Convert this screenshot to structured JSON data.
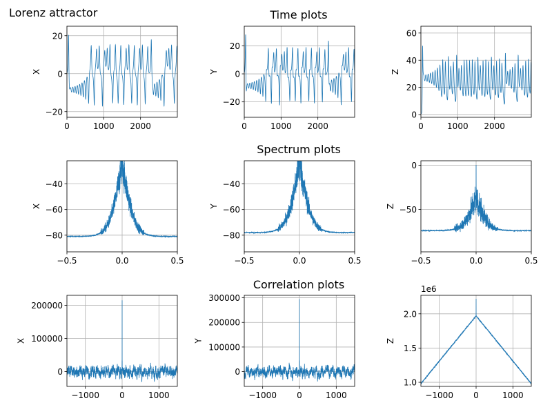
{
  "figure_title": "Lorenz attractor",
  "row_titles": [
    "Time plots",
    "Spectrum plots",
    "Correlation plots"
  ],
  "colors": {
    "line": "#1f77b4",
    "grid": "#b0b0b0",
    "axis": "#000000"
  },
  "chart_data": [
    {
      "type": "line",
      "row": 0,
      "col": 0,
      "ylabel": "X",
      "xlim": [
        0,
        3000
      ],
      "ylim": [
        -23,
        25
      ],
      "xticks": [
        0,
        1000,
        2000
      ],
      "xtick_labels": [
        "0",
        "1000",
        "2000"
      ],
      "yticks": [
        -20,
        0,
        20
      ],
      "ytick_labels": [
        "−20",
        "0",
        "20"
      ],
      "signal": {
        "kind": "time",
        "var": "x",
        "n": 3000
      }
    },
    {
      "type": "line",
      "row": 0,
      "col": 1,
      "ylabel": "Y",
      "xlim": [
        0,
        3000
      ],
      "ylim": [
        -31,
        34
      ],
      "xticks": [
        0,
        1000,
        2000
      ],
      "xtick_labels": [
        "0",
        "1000",
        "2000"
      ],
      "yticks": [
        -20,
        0,
        20
      ],
      "ytick_labels": [
        "−20",
        "0",
        "20"
      ],
      "signal": {
        "kind": "time",
        "var": "y",
        "n": 3000
      }
    },
    {
      "type": "line",
      "row": 0,
      "col": 2,
      "ylabel": "Z",
      "xlim": [
        0,
        3000
      ],
      "ylim": [
        -2,
        65
      ],
      "xticks": [
        0,
        1000,
        2000
      ],
      "xtick_labels": [
        "0",
        "1000",
        "2000"
      ],
      "yticks": [
        0,
        20,
        40,
        60
      ],
      "ytick_labels": [
        "0",
        "20",
        "40",
        "60"
      ],
      "signal": {
        "kind": "time",
        "var": "z",
        "n": 3000
      }
    },
    {
      "type": "line",
      "row": 1,
      "col": 0,
      "ylabel": "X",
      "xlim": [
        -0.5,
        0.5
      ],
      "ylim": [
        -93,
        -22
      ],
      "xticks": [
        -0.5,
        0,
        0.5
      ],
      "xtick_labels": [
        "−0.5",
        "0.0",
        "0.5"
      ],
      "yticks": [
        -80,
        -60,
        -40
      ],
      "ytick_labels": [
        "−80",
        "−60",
        "−40"
      ],
      "signal": {
        "kind": "spectrum",
        "floor": -81,
        "peak": -26,
        "spike": 0,
        "noise": 9,
        "n": 1500
      }
    },
    {
      "type": "line",
      "row": 1,
      "col": 1,
      "ylabel": "Y",
      "xlim": [
        -0.5,
        0.5
      ],
      "ylim": [
        -93,
        -22
      ],
      "xticks": [
        -0.5,
        0,
        0.5
      ],
      "xtick_labels": [
        "−0.5",
        "0.0",
        "0.5"
      ],
      "yticks": [
        -80,
        -60,
        -40
      ],
      "ytick_labels": [
        "−80",
        "−60",
        "−40"
      ],
      "signal": {
        "kind": "spectrum",
        "floor": -78,
        "peak": -26,
        "spike": 0,
        "noise": 9,
        "n": 1500
      }
    },
    {
      "type": "line",
      "row": 1,
      "col": 2,
      "ylabel": "Z",
      "xlim": [
        -0.5,
        0.5
      ],
      "ylim": [
        -98,
        5
      ],
      "xticks": [
        -0.5,
        0,
        0.5
      ],
      "xtick_labels": [
        "−0.5",
        "0.0",
        "0.5"
      ],
      "yticks": [
        -50,
        0
      ],
      "ytick_labels": [
        "−50",
        "0"
      ],
      "signal": {
        "kind": "spectrum",
        "floor": -74,
        "peak": -38,
        "spike": 0,
        "noise": 12,
        "n": 1500
      }
    },
    {
      "type": "line",
      "row": 2,
      "col": 0,
      "ylabel": "X",
      "xlim": [
        -1500,
        1500
      ],
      "ylim": [
        -45000,
        230000
      ],
      "xticks": [
        -1000,
        0,
        1000
      ],
      "xtick_labels": [
        "−1000",
        "0",
        "1000"
      ],
      "yticks": [
        0,
        100000,
        200000
      ],
      "ytick_labels": [
        "0",
        "100000",
        "200000"
      ],
      "signal": {
        "kind": "correlation",
        "peak": 215000,
        "amp": 14000,
        "n": 3000
      }
    },
    {
      "type": "line",
      "row": 2,
      "col": 1,
      "ylabel": "Y",
      "xlim": [
        -1500,
        1500
      ],
      "ylim": [
        -60000,
        310000
      ],
      "xticks": [
        -1000,
        0,
        1000
      ],
      "xtick_labels": [
        "−1000",
        "0",
        "1000"
      ],
      "yticks": [
        0,
        100000,
        200000,
        300000
      ],
      "ytick_labels": [
        "0",
        "100000",
        "200000",
        "300000"
      ],
      "signal": {
        "kind": "correlation",
        "peak": 295000,
        "amp": 17000,
        "n": 3000
      }
    },
    {
      "type": "line",
      "row": 2,
      "col": 2,
      "ylabel": "Z",
      "xlim": [
        -1500,
        1500
      ],
      "ylim": [
        0.94,
        2.27
      ],
      "offset_label": "1e6",
      "xticks": [
        -1000,
        0,
        1000
      ],
      "xtick_labels": [
        "−1000",
        "0",
        "1000"
      ],
      "yticks": [
        1.0,
        1.5,
        2.0
      ],
      "ytick_labels": [
        "1.0",
        "1.5",
        "2.0"
      ],
      "signal": {
        "kind": "zcorr",
        "center": 1.97,
        "edge": 0.98,
        "spike": 2.22,
        "n": 3000
      }
    }
  ]
}
